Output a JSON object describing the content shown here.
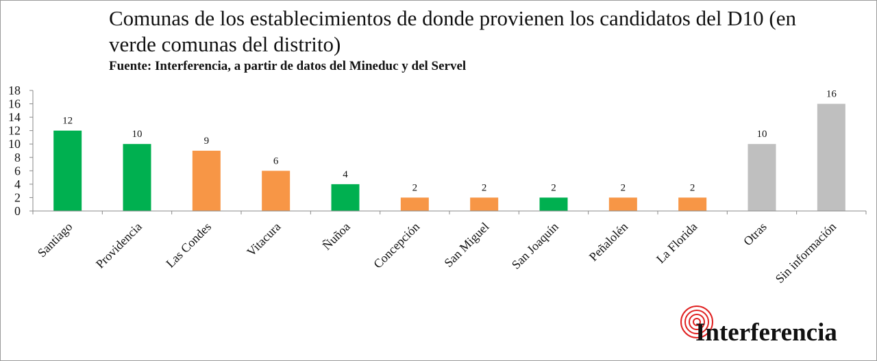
{
  "chart_data": {
    "type": "bar",
    "title": "Comunas de los establecimientos de donde provienen los candidatos del D10 (en verde comunas del distrito)",
    "subtitle": "Fuente: Interferencia, a partir de datos del Mineduc  y del Servel",
    "categories": [
      "Santiago",
      "Providencia",
      "Las Condes",
      "Vitacura",
      "Ñuñoa",
      "Concepción",
      "San Miguel",
      "San Joaquín",
      "Peñalolén",
      "La Florida",
      "Otras",
      "Sin información"
    ],
    "values": [
      12,
      10,
      9,
      6,
      4,
      2,
      2,
      2,
      2,
      2,
      10,
      16
    ],
    "bar_colors": [
      "#00b050",
      "#00b050",
      "#f79646",
      "#f79646",
      "#00b050",
      "#f79646",
      "#f79646",
      "#00b050",
      "#f79646",
      "#f79646",
      "#bfbfbf",
      "#bfbfbf"
    ],
    "yticks": [
      0,
      2,
      4,
      6,
      8,
      10,
      12,
      14,
      16,
      18
    ],
    "ylim": [
      0,
      18
    ],
    "grid": false,
    "legend": "none"
  },
  "brand": {
    "name": "Interferencia",
    "color": "#e02020"
  }
}
